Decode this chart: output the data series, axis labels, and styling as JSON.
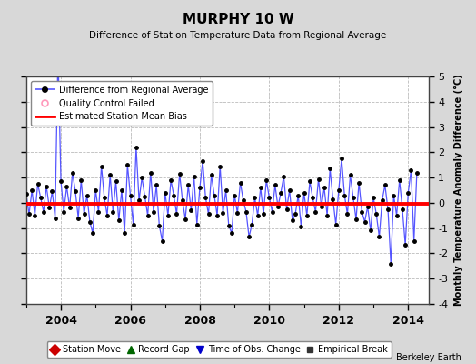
{
  "title": "MURPHY 10 W",
  "subtitle": "Difference of Station Temperature Data from Regional Average",
  "ylabel": "Monthly Temperature Anomaly Difference (°C)",
  "xlim": [
    2003.0,
    2014.583
  ],
  "ylim": [
    -4,
    5
  ],
  "yticks": [
    -4,
    -3,
    -2,
    -1,
    0,
    1,
    2,
    3,
    4,
    5
  ],
  "xticks": [
    2004,
    2006,
    2008,
    2010,
    2012,
    2014
  ],
  "bias_value": -0.05,
  "line_color": "#5555ff",
  "dot_color": "#000000",
  "bias_color": "#ff0000",
  "background_color": "#d8d8d8",
  "plot_bg_color": "#ffffff",
  "grid_color": "#bbbbbb",
  "watermark": "Berkeley Earth",
  "data_x": [
    2003.0,
    2003.083,
    2003.167,
    2003.25,
    2003.333,
    2003.417,
    2003.5,
    2003.583,
    2003.667,
    2003.75,
    2003.833,
    2003.917,
    2004.0,
    2004.083,
    2004.167,
    2004.25,
    2004.333,
    2004.417,
    2004.5,
    2004.583,
    2004.667,
    2004.75,
    2004.833,
    2004.917,
    2005.0,
    2005.083,
    2005.167,
    2005.25,
    2005.333,
    2005.417,
    2005.5,
    2005.583,
    2005.667,
    2005.75,
    2005.833,
    2005.917,
    2006.0,
    2006.083,
    2006.167,
    2006.25,
    2006.333,
    2006.417,
    2006.5,
    2006.583,
    2006.667,
    2006.75,
    2006.833,
    2006.917,
    2007.0,
    2007.083,
    2007.167,
    2007.25,
    2007.333,
    2007.417,
    2007.5,
    2007.583,
    2007.667,
    2007.75,
    2007.833,
    2007.917,
    2008.0,
    2008.083,
    2008.167,
    2008.25,
    2008.333,
    2008.417,
    2008.5,
    2008.583,
    2008.667,
    2008.75,
    2008.833,
    2008.917,
    2009.0,
    2009.083,
    2009.167,
    2009.25,
    2009.333,
    2009.417,
    2009.5,
    2009.583,
    2009.667,
    2009.75,
    2009.833,
    2009.917,
    2010.0,
    2010.083,
    2010.167,
    2010.25,
    2010.333,
    2010.417,
    2010.5,
    2010.583,
    2010.667,
    2010.75,
    2010.833,
    2010.917,
    2011.0,
    2011.083,
    2011.167,
    2011.25,
    2011.333,
    2011.417,
    2011.5,
    2011.583,
    2011.667,
    2011.75,
    2011.833,
    2011.917,
    2012.0,
    2012.083,
    2012.167,
    2012.25,
    2012.333,
    2012.417,
    2012.5,
    2012.583,
    2012.667,
    2012.75,
    2012.833,
    2012.917,
    2013.0,
    2013.083,
    2013.167,
    2013.25,
    2013.333,
    2013.417,
    2013.5,
    2013.583,
    2013.667,
    2013.75,
    2013.833,
    2013.917,
    2014.0,
    2014.083,
    2014.167,
    2014.25
  ],
  "data_y": [
    0.35,
    -0.45,
    0.5,
    -0.5,
    0.75,
    0.2,
    -0.35,
    0.65,
    -0.2,
    0.45,
    -0.6,
    6.0,
    0.85,
    -0.35,
    0.65,
    -0.2,
    1.2,
    0.45,
    -0.6,
    0.9,
    -0.45,
    0.3,
    -0.75,
    -1.2,
    0.5,
    -0.35,
    1.45,
    0.2,
    -0.5,
    1.1,
    -0.35,
    0.85,
    -0.7,
    0.5,
    -1.2,
    1.5,
    0.3,
    -0.85,
    2.2,
    0.1,
    1.0,
    0.25,
    -0.5,
    1.2,
    -0.35,
    0.7,
    -0.9,
    -1.5,
    0.4,
    -0.5,
    0.9,
    0.3,
    -0.45,
    1.15,
    0.1,
    -0.65,
    0.7,
    -0.3,
    1.05,
    -0.85,
    0.6,
    1.65,
    0.2,
    -0.45,
    1.1,
    0.3,
    -0.5,
    1.45,
    -0.4,
    0.5,
    -0.9,
    -1.2,
    0.3,
    -0.4,
    0.8,
    0.1,
    -0.35,
    -1.35,
    -0.85,
    0.2,
    -0.5,
    0.6,
    -0.45,
    0.9,
    0.2,
    -0.35,
    0.7,
    -0.15,
    0.4,
    1.05,
    -0.25,
    0.5,
    -0.7,
    -0.45,
    0.3,
    -0.95,
    0.4,
    -0.5,
    0.85,
    0.2,
    -0.35,
    0.95,
    -0.15,
    0.6,
    -0.5,
    1.35,
    0.15,
    -0.85,
    0.5,
    1.75,
    0.3,
    -0.45,
    1.1,
    0.2,
    -0.65,
    0.8,
    -0.35,
    -0.75,
    -0.15,
    -1.1,
    0.2,
    -0.45,
    -1.35,
    0.1,
    0.7,
    -0.25,
    -2.4,
    0.3,
    -0.5,
    0.9,
    -0.25,
    -1.65,
    0.4,
    1.3,
    -1.5,
    1.2
  ]
}
